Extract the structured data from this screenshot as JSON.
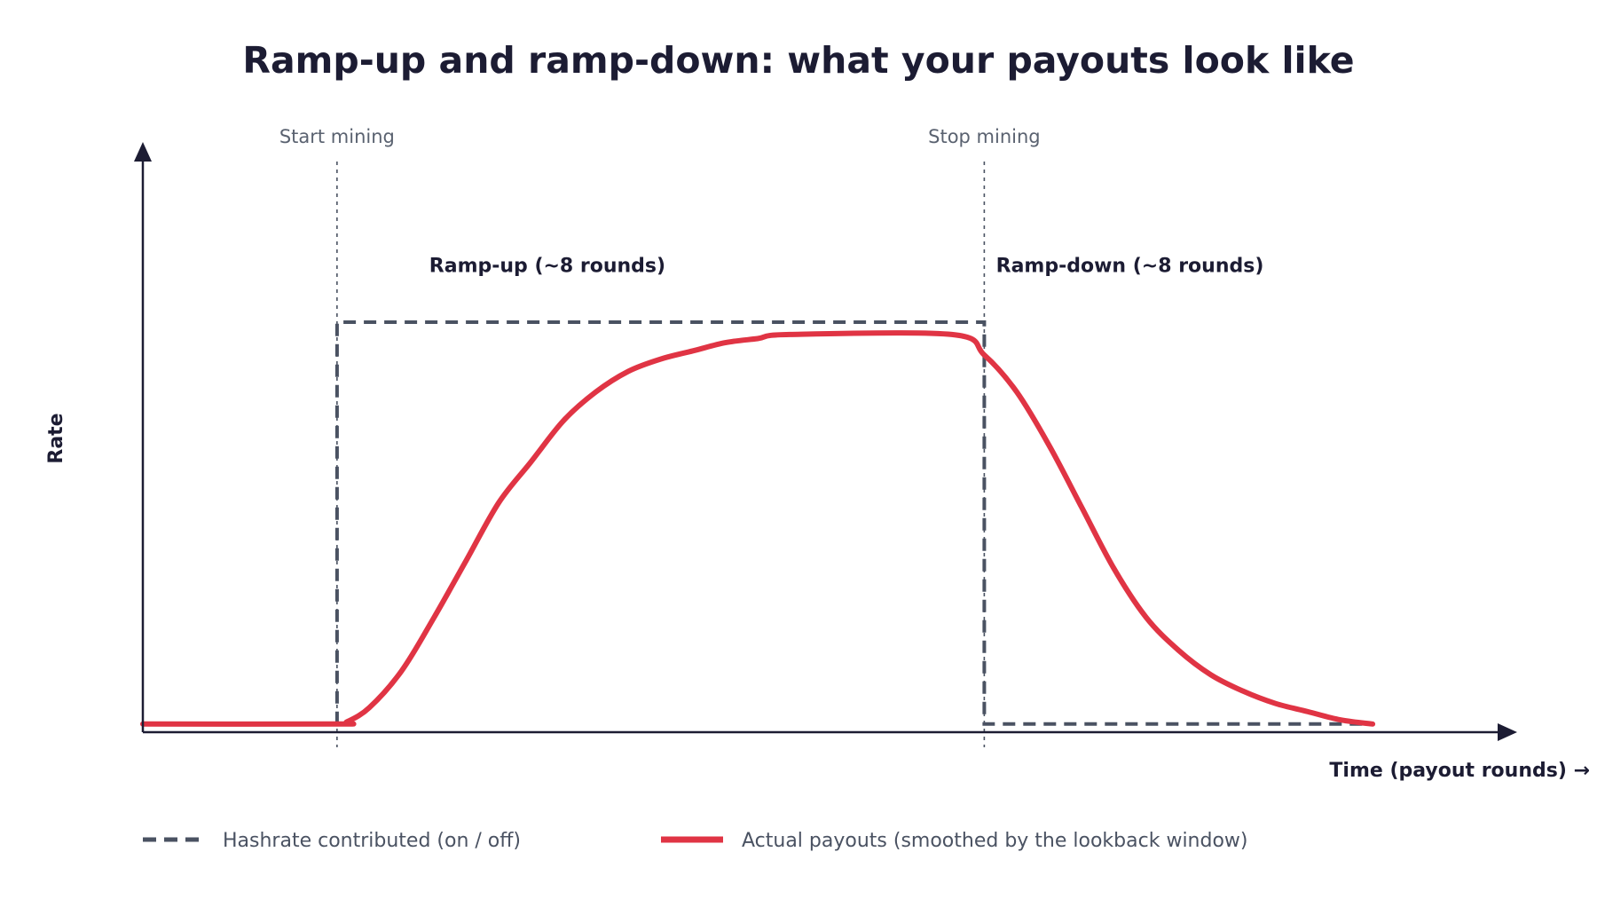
{
  "chart_data": {
    "type": "line",
    "title": "Ramp-up and ramp-down: what your payouts look like",
    "xlabel": "Time (payout rounds) →",
    "ylabel": "Rate",
    "xlim": [
      0,
      42
    ],
    "ylim": [
      0,
      1.0
    ],
    "grid": false,
    "legend_position": "bottom-left",
    "markers": [
      {
        "label": "Start mining",
        "x": 6
      },
      {
        "label": "Stop mining",
        "x": 26
      }
    ],
    "annotations": [
      {
        "text": "Ramp-up (~8 rounds)",
        "x": 12.5,
        "y": 1.14
      },
      {
        "text": "Ramp-down (~8 rounds)",
        "x": 30.5,
        "y": 1.14
      }
    ],
    "series": [
      {
        "name": "Hashrate contributed (on / off)",
        "style": "dashed",
        "color": "#4a5262",
        "points": [
          [
            6,
            0.02
          ],
          [
            6,
            1.0
          ],
          [
            26,
            1.0
          ],
          [
            26,
            0.02
          ],
          [
            38,
            0.02
          ]
        ]
      },
      {
        "name": "Actual payouts (smoothed by the lookback window)",
        "style": "solid",
        "color": "#e03444",
        "points": [
          [
            0,
            0.02
          ],
          [
            6,
            0.02
          ],
          [
            6.3,
            0.025
          ],
          [
            7,
            0.06
          ],
          [
            8,
            0.15
          ],
          [
            9,
            0.28
          ],
          [
            10,
            0.42
          ],
          [
            11,
            0.56
          ],
          [
            12,
            0.66
          ],
          [
            13,
            0.76
          ],
          [
            14,
            0.83
          ],
          [
            15,
            0.88
          ],
          [
            16,
            0.91
          ],
          [
            17,
            0.93
          ],
          [
            18,
            0.95
          ],
          [
            19,
            0.96
          ],
          [
            20,
            0.97
          ],
          [
            25,
            0.97
          ],
          [
            26,
            0.92
          ],
          [
            27,
            0.83
          ],
          [
            28,
            0.7
          ],
          [
            29,
            0.55
          ],
          [
            30,
            0.4
          ],
          [
            31,
            0.28
          ],
          [
            32,
            0.2
          ],
          [
            33,
            0.14
          ],
          [
            34,
            0.1
          ],
          [
            35,
            0.07
          ],
          [
            36,
            0.05
          ],
          [
            37,
            0.03
          ],
          [
            38,
            0.02
          ]
        ]
      }
    ]
  }
}
